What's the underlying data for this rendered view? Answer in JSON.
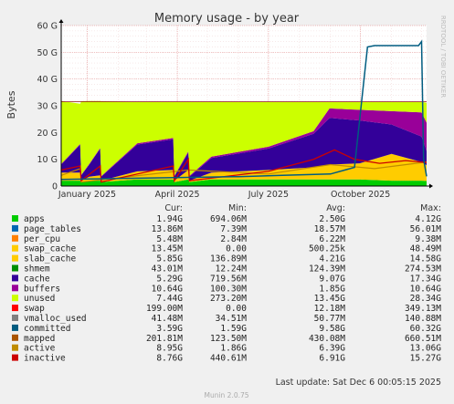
{
  "chart_data": {
    "type": "area",
    "title": "Memory usage - by year",
    "ylabel": "Bytes",
    "side_label": "RRDTOOL / TOBI OETIKER",
    "ylim": [
      0,
      60
    ],
    "y_unit": "G",
    "y_ticks": [
      "0",
      "10 G",
      "20 G",
      "30 G",
      "40 G",
      "50 G",
      "60 G"
    ],
    "x_ticks": [
      {
        "label": "January 2025",
        "date": "2025-01-01"
      },
      {
        "label": "April 2025",
        "date": "2025-04-01"
      },
      {
        "label": "July 2025",
        "date": "2025-07-01"
      },
      {
        "label": "October 2025",
        "date": "2025-10-01"
      }
    ],
    "x_range": [
      "2024-12-06",
      "2025-12-06"
    ],
    "grid": true,
    "legend_headers": [
      "Cur:",
      "Min:",
      "Avg:",
      "Max:"
    ],
    "series": [
      {
        "name": "apps",
        "color": "#00cc00",
        "cur": "1.94G",
        "min": "694.06M",
        "avg": "2.50G",
        "max": "4.12G"
      },
      {
        "name": "page_tables",
        "color": "#0066b3",
        "cur": "13.86M",
        "min": "7.39M",
        "avg": "18.57M",
        "max": "56.01M"
      },
      {
        "name": "per_cpu",
        "color": "#ff8000",
        "cur": "5.48M",
        "min": "2.84M",
        "avg": "6.22M",
        "max": "9.38M"
      },
      {
        "name": "swap_cache",
        "color": "#ffcc00",
        "cur": "13.45M",
        "min": "0.00",
        "avg": "500.25k",
        "max": "48.49M"
      },
      {
        "name": "slab_cache",
        "color": "#ffcc00",
        "cur": "5.85G",
        "min": "136.89M",
        "avg": "4.21G",
        "max": "14.58G"
      },
      {
        "name": "shmem",
        "color": "#008f00",
        "cur": "43.01M",
        "min": "12.24M",
        "avg": "124.39M",
        "max": "274.53M"
      },
      {
        "name": "cache",
        "color": "#330099",
        "cur": "5.29G",
        "min": "719.56M",
        "avg": "9.07G",
        "max": "17.34G"
      },
      {
        "name": "buffers",
        "color": "#990099",
        "cur": "10.64G",
        "min": "100.30M",
        "avg": "1.85G",
        "max": "10.64G"
      },
      {
        "name": "unused",
        "color": "#ccff00",
        "cur": "7.44G",
        "min": "273.20M",
        "avg": "13.45G",
        "max": "28.34G"
      },
      {
        "name": "swap",
        "color": "#ff0000",
        "cur": "199.00M",
        "min": "0.00",
        "avg": "12.18M",
        "max": "349.13M"
      },
      {
        "name": "vmalloc_used",
        "color": "#808080",
        "cur": "41.48M",
        "min": "34.51M",
        "avg": "50.77M",
        "max": "140.88M"
      },
      {
        "name": "committed",
        "color": "#005c80",
        "cur": "3.59G",
        "min": "1.59G",
        "avg": "9.58G",
        "max": "60.32G"
      },
      {
        "name": "mapped",
        "color": "#aa5500",
        "cur": "201.81M",
        "min": "123.50M",
        "avg": "430.08M",
        "max": "660.51M"
      },
      {
        "name": "active",
        "color": "#c08c00",
        "cur": "8.95G",
        "min": "1.86G",
        "avg": "6.39G",
        "max": "13.06G"
      },
      {
        "name": "inactive",
        "color": "#cc0000",
        "cur": "8.76G",
        "min": "440.61M",
        "avg": "6.91G",
        "max": "15.27G"
      }
    ],
    "stack_profile": [
      {
        "date": "2024-12-06",
        "apps": 2.0,
        "slab": 3.0,
        "cache": 3.0,
        "buffers": 0.3,
        "unused": 23.5
      },
      {
        "date": "2024-12-25",
        "apps": 2.0,
        "slab": 3.0,
        "cache": 10.5,
        "buffers": 0.3,
        "unused": 15.0
      },
      {
        "date": "2024-12-26",
        "apps": 1.5,
        "slab": 0.5,
        "cache": 2.0,
        "buffers": 0.2,
        "unused": 27.5
      },
      {
        "date": "2025-01-03",
        "apps": 2.0,
        "slab": 1.5,
        "cache": 4.5,
        "buffers": 0.3,
        "unused": 23.5
      },
      {
        "date": "2025-01-14",
        "apps": 2.0,
        "slab": 2.0,
        "cache": 10.0,
        "buffers": 0.3,
        "unused": 17.5
      },
      {
        "date": "2025-01-15",
        "apps": 1.5,
        "slab": 0.5,
        "cache": 1.5,
        "buffers": 0.2,
        "unused": 28.0
      },
      {
        "date": "2025-02-20",
        "apps": 2.5,
        "slab": 3.0,
        "cache": 10.0,
        "buffers": 0.5,
        "unused": 15.5
      },
      {
        "date": "2025-03-28",
        "apps": 2.5,
        "slab": 3.5,
        "cache": 11.5,
        "buffers": 0.5,
        "unused": 13.5
      },
      {
        "date": "2025-03-29",
        "apps": 1.5,
        "slab": 0.5,
        "cache": 1.5,
        "buffers": 0.3,
        "unused": 27.7
      },
      {
        "date": "2025-04-12",
        "apps": 2.5,
        "slab": 3.5,
        "cache": 6.5,
        "buffers": 0.5,
        "unused": 18.5
      },
      {
        "date": "2025-04-13",
        "apps": 1.5,
        "slab": 0.5,
        "cache": 1.5,
        "buffers": 0.3,
        "unused": 27.7
      },
      {
        "date": "2025-05-05",
        "apps": 2.5,
        "slab": 2.5,
        "cache": 5.5,
        "buffers": 0.5,
        "unused": 20.5
      },
      {
        "date": "2025-07-01",
        "apps": 2.5,
        "slab": 3.5,
        "cache": 8.0,
        "buffers": 0.7,
        "unused": 16.8
      },
      {
        "date": "2025-08-15",
        "apps": 2.5,
        "slab": 4.5,
        "cache": 12.5,
        "buffers": 1.0,
        "unused": 11.0
      },
      {
        "date": "2025-08-31",
        "apps": 2.5,
        "slab": 5.5,
        "cache": 17.5,
        "buffers": 3.5,
        "unused": 2.5
      },
      {
        "date": "2025-09-30",
        "apps": 2.5,
        "slab": 6.0,
        "cache": 16.0,
        "buffers": 4.0,
        "unused": 3.0
      },
      {
        "date": "2025-11-01",
        "apps": 2.0,
        "slab": 10.0,
        "cache": 11.0,
        "buffers": 5.0,
        "unused": 3.5
      },
      {
        "date": "2025-12-01",
        "apps": 2.0,
        "slab": 7.0,
        "cache": 9.5,
        "buffers": 9.0,
        "unused": 4.0
      },
      {
        "date": "2025-12-06",
        "apps": 1.9,
        "slab": 5.9,
        "cache": 5.3,
        "buffers": 10.6,
        "unused": 7.4
      }
    ],
    "committed_line": [
      {
        "date": "2024-12-06",
        "value": 2.5
      },
      {
        "date": "2025-06-01",
        "value": 3.5
      },
      {
        "date": "2025-07-15",
        "value": 4.0
      },
      {
        "date": "2025-09-01",
        "value": 4.5
      },
      {
        "date": "2025-09-25",
        "value": 7.0
      },
      {
        "date": "2025-10-08",
        "value": 52.0
      },
      {
        "date": "2025-10-15",
        "value": 52.5
      },
      {
        "date": "2025-11-28",
        "value": 52.5
      },
      {
        "date": "2025-12-01",
        "value": 54.0
      },
      {
        "date": "2025-12-03",
        "value": 10.0
      },
      {
        "date": "2025-12-06",
        "value": 3.6
      }
    ],
    "inactive_line": [
      {
        "date": "2024-12-06",
        "value": 6.0
      },
      {
        "date": "2024-12-25",
        "value": 7.5
      },
      {
        "date": "2024-12-26",
        "value": 2.0
      },
      {
        "date": "2025-01-14",
        "value": 7.5
      },
      {
        "date": "2025-01-15",
        "value": 1.5
      },
      {
        "date": "2025-03-28",
        "value": 7.5
      },
      {
        "date": "2025-03-29",
        "value": 2.0
      },
      {
        "date": "2025-04-12",
        "value": 10.0
      },
      {
        "date": "2025-04-13",
        "value": 2.0
      },
      {
        "date": "2025-07-01",
        "value": 5.5
      },
      {
        "date": "2025-08-15",
        "value": 10.0
      },
      {
        "date": "2025-09-05",
        "value": 13.5
      },
      {
        "date": "2025-09-25",
        "value": 10.0
      },
      {
        "date": "2025-10-20",
        "value": 8.5
      },
      {
        "date": "2025-11-15",
        "value": 9.5
      },
      {
        "date": "2025-12-06",
        "value": 8.8
      }
    ],
    "active_line": [
      {
        "date": "2024-12-06",
        "value": 4.0
      },
      {
        "date": "2024-12-25",
        "value": 6.5
      },
      {
        "date": "2024-12-26",
        "value": 1.5
      },
      {
        "date": "2025-04-12",
        "value": 6.0
      },
      {
        "date": "2025-07-01",
        "value": 4.5
      },
      {
        "date": "2025-09-01",
        "value": 8.0
      },
      {
        "date": "2025-10-15",
        "value": 6.5
      },
      {
        "date": "2025-12-06",
        "value": 9.0
      }
    ],
    "total_line": [
      {
        "date": "2024-12-06",
        "value": 31.5
      },
      {
        "date": "2025-12-06",
        "value": 31.5
      }
    ],
    "last_update": "Last update:  Sat Dec  6 00:05:15 2025",
    "footer": "Munin 2.0.75"
  }
}
